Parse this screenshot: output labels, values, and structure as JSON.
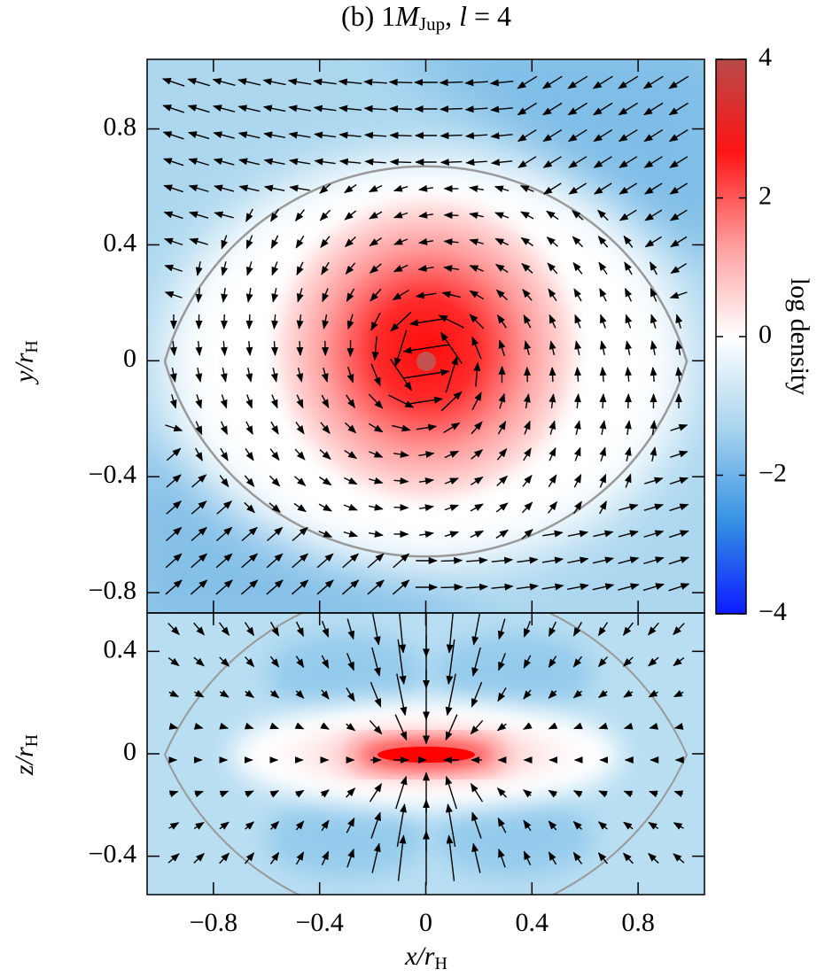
{
  "chart_data": [
    {
      "type": "heatmap-vector",
      "title": [
        "(b) 1",
        "M",
        "Jup",
        ", ",
        "l",
        " = 4"
      ],
      "ylabel": [
        "y/r",
        "H"
      ],
      "xlim": [
        -1.05,
        1.05
      ],
      "ylim": [
        -0.87,
        1.04
      ],
      "yticks": [
        0.8,
        0.4,
        0,
        {
          "value": -0.4,
          "label": "−0.4"
        },
        {
          "value": -0.8,
          "label": "−0.8"
        }
      ]
    },
    {
      "type": "heatmap-vector",
      "xlabel": [
        "x/r",
        "H"
      ],
      "ylabel": [
        "z/r",
        "H"
      ],
      "xlim": [
        -1.05,
        1.05
      ],
      "ylim": [
        -0.55,
        0.55
      ],
      "xticks": [
        {
          "value": -0.8,
          "label": "−0.8"
        },
        {
          "value": -0.4,
          "label": "−0.4"
        },
        0,
        0.4,
        0.8
      ],
      "yticks": [
        0.4,
        0,
        {
          "value": -0.4,
          "label": "−0.4"
        }
      ]
    },
    {
      "type": "colorbar",
      "label": "log density",
      "ylim": [
        -4,
        4
      ],
      "yticks": [
        4,
        2,
        0,
        {
          "value": -2,
          "label": "−2"
        },
        {
          "value": -4,
          "label": "−4"
        }
      ],
      "colors": [
        "#0b1bff",
        "#3591e4",
        "#a8d4ee",
        "#ffffff",
        "#ff9c9c",
        "#ff1414",
        "#b84a4a"
      ]
    }
  ]
}
